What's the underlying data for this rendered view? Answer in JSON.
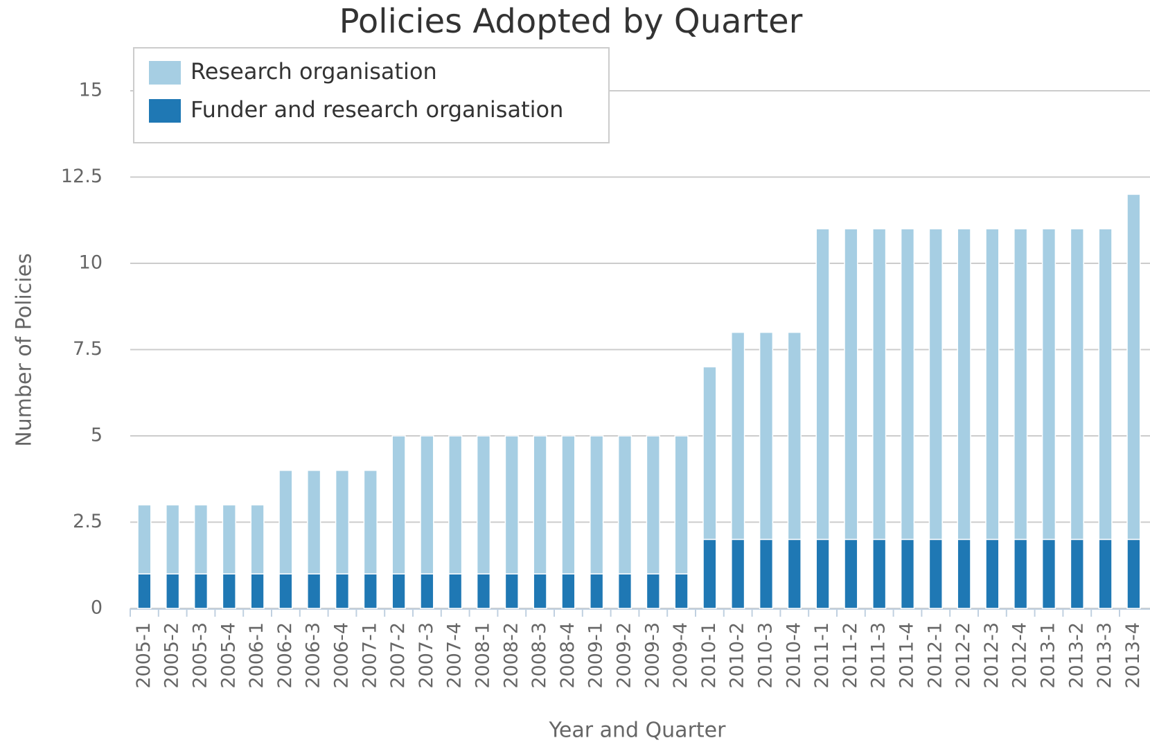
{
  "chart_data": {
    "type": "stacked_bar",
    "title": "Policies Adopted by Quarter",
    "x_label": "Year and Quarter",
    "y_label": "Number of Policies",
    "categories": [
      "2005-1",
      "2005-2",
      "2005-3",
      "2005-4",
      "2006-1",
      "2006-2",
      "2006-3",
      "2006-4",
      "2007-1",
      "2007-2",
      "2007-3",
      "2007-4",
      "2008-1",
      "2008-2",
      "2008-3",
      "2008-4",
      "2009-1",
      "2009-2",
      "2009-3",
      "2009-4",
      "2010-1",
      "2010-2",
      "2010-3",
      "2010-4",
      "2011-1",
      "2011-2",
      "2011-3",
      "2011-4",
      "2012-1",
      "2012-2",
      "2012-3",
      "2012-4",
      "2013-1",
      "2013-2",
      "2013-3",
      "2013-4"
    ],
    "series": [
      {
        "name": "Research organisation",
        "color": "#a6cee3",
        "values": [
          2,
          2,
          2,
          2,
          2,
          3,
          3,
          3,
          3,
          4,
          4,
          4,
          4,
          4,
          4,
          4,
          4,
          4,
          4,
          4,
          5,
          6,
          6,
          6,
          9,
          9,
          9,
          9,
          9,
          9,
          9,
          9,
          9,
          9,
          9,
          10
        ]
      },
      {
        "name": "Funder and research organisation",
        "color": "#1f78b4",
        "values": [
          1,
          1,
          1,
          1,
          1,
          1,
          1,
          1,
          1,
          1,
          1,
          1,
          1,
          1,
          1,
          1,
          1,
          1,
          1,
          1,
          2,
          2,
          2,
          2,
          2,
          2,
          2,
          2,
          2,
          2,
          2,
          2,
          2,
          2,
          2,
          2
        ]
      }
    ],
    "ylim": [
      0,
      15
    ],
    "yticks": [
      0,
      2.5,
      5,
      7.5,
      10,
      12.5,
      15
    ],
    "grid": true,
    "legend": "top-left"
  }
}
